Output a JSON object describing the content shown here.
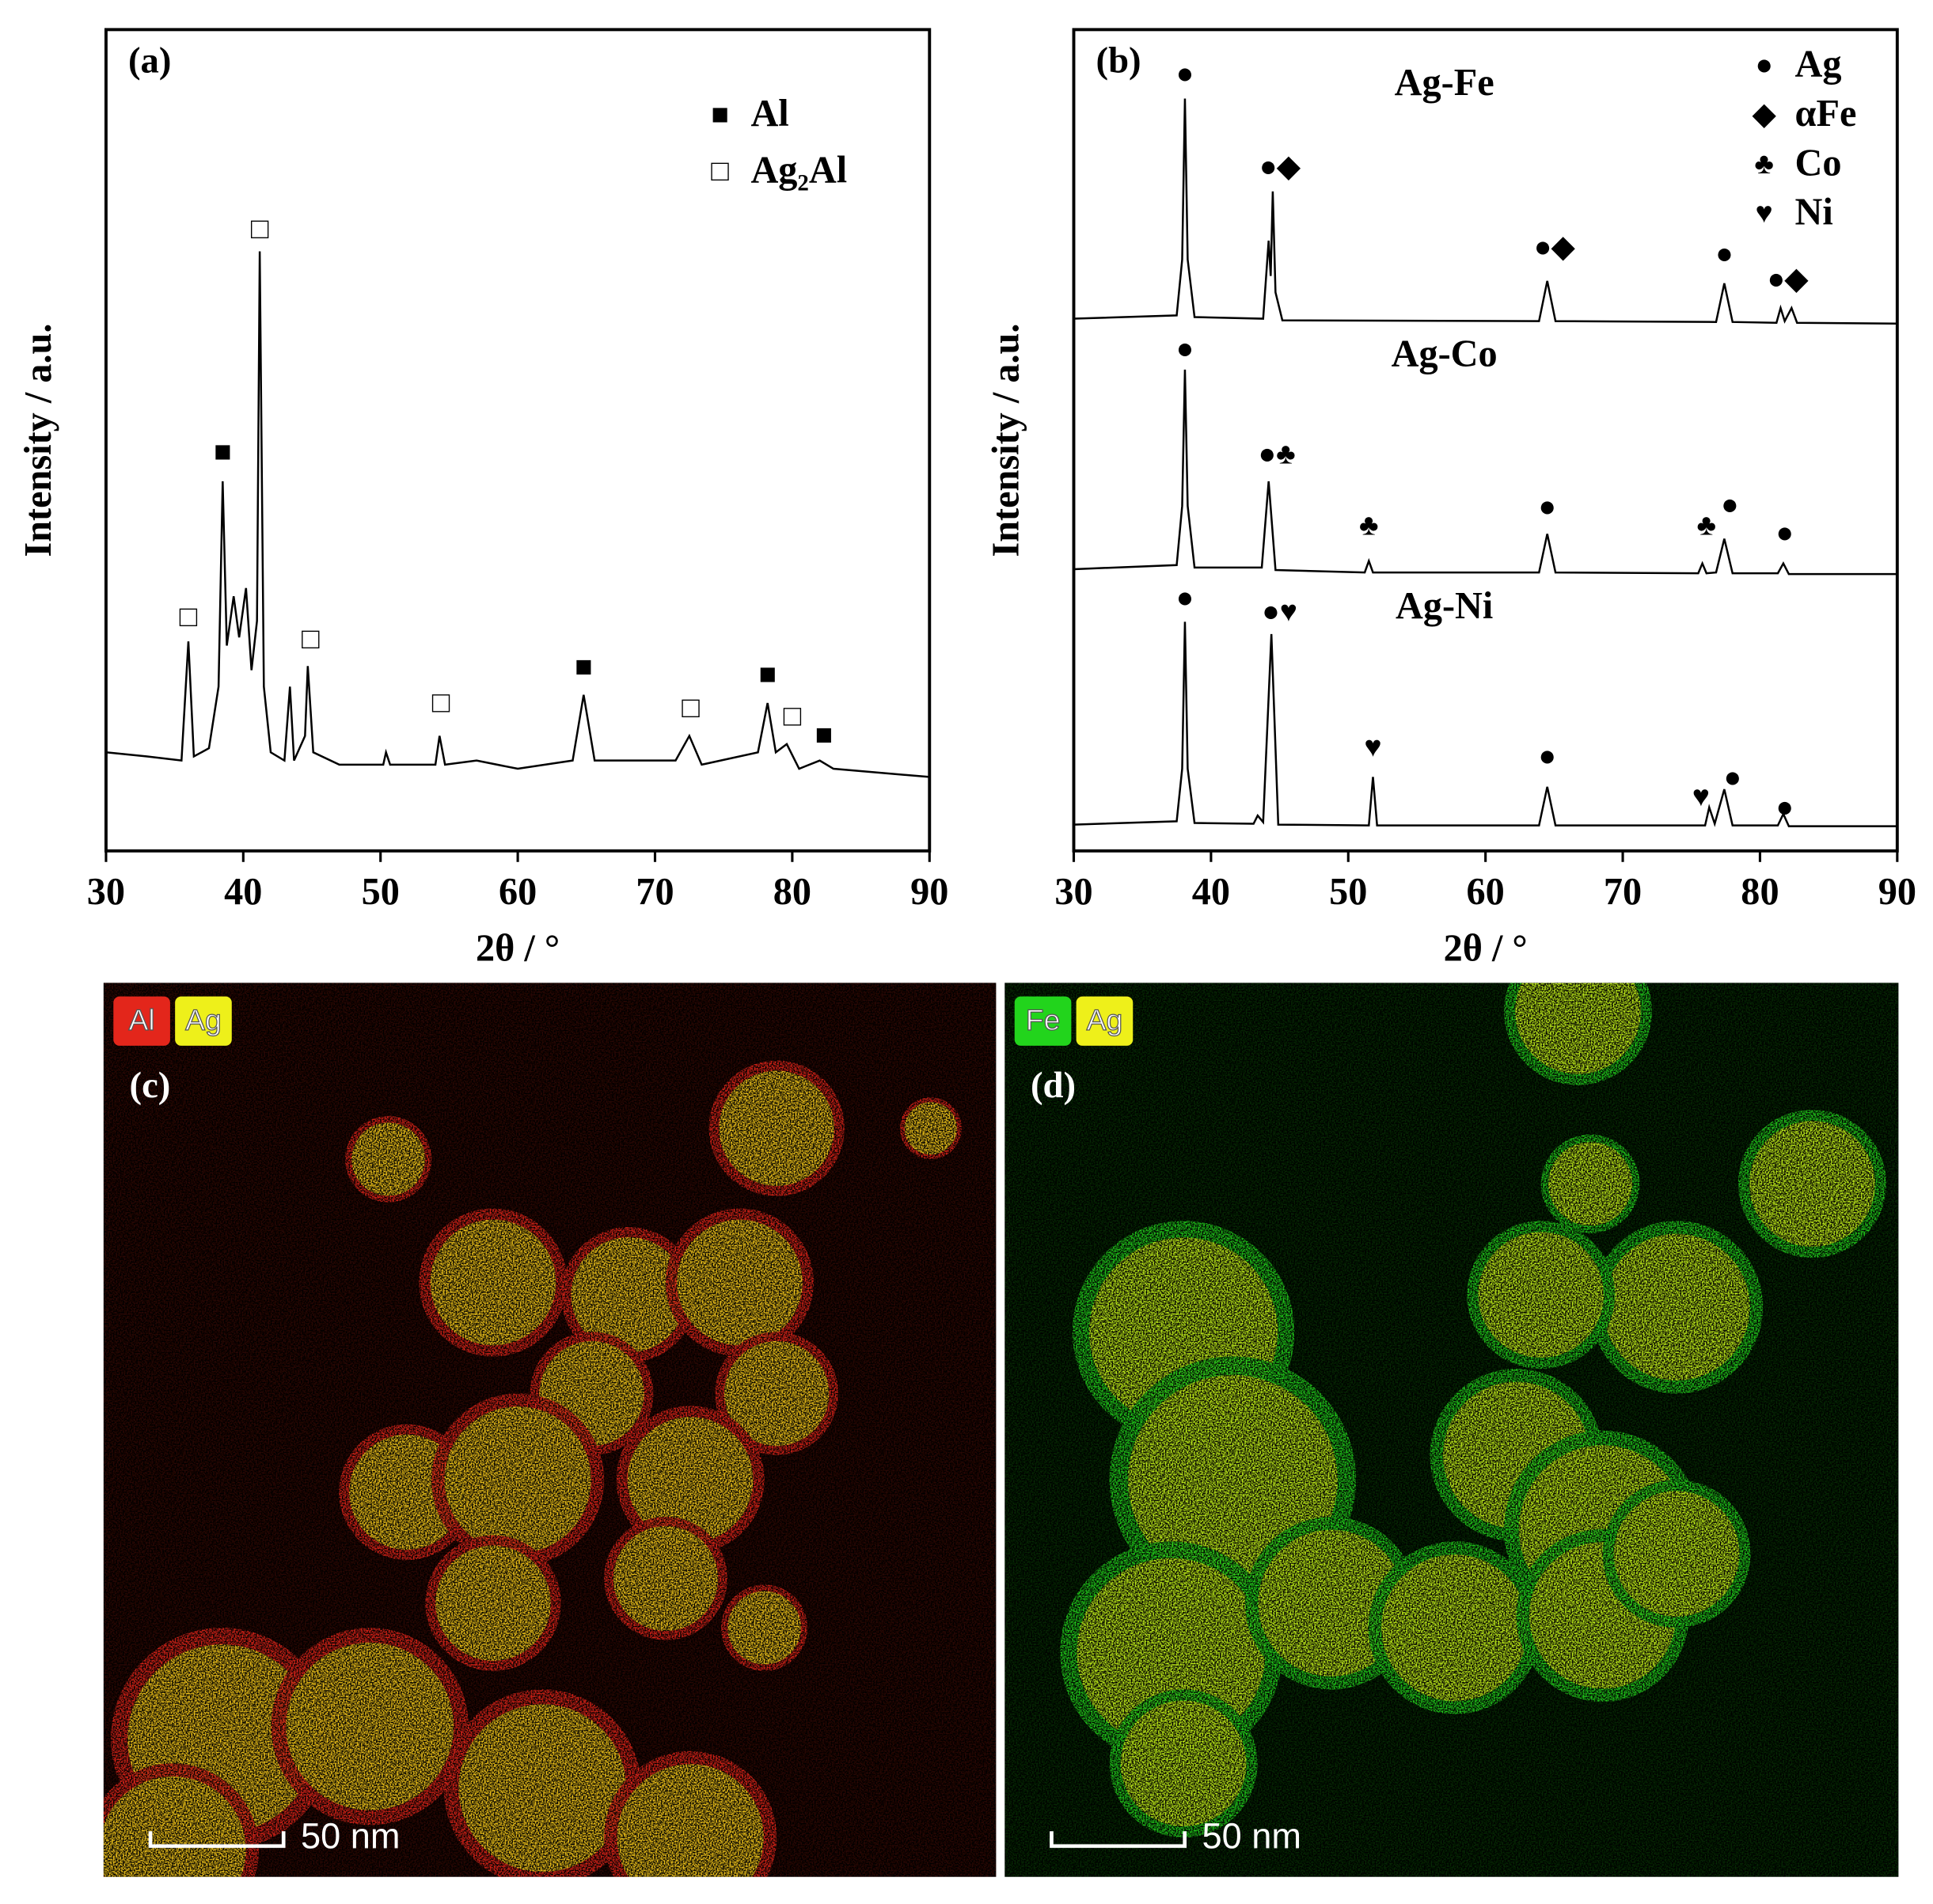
{
  "chart_data": [
    {
      "type": "line",
      "title": "(a)",
      "x_label": "2θ / °",
      "y_label": "Intensity / a.u.",
      "xlim": [
        30,
        90
      ],
      "xticks": [
        30,
        40,
        50,
        60,
        70,
        80,
        90
      ],
      "ylim": [
        0,
        100
      ],
      "color": "#000000",
      "x": [
        30,
        33,
        35.5,
        36,
        36.4,
        37.5,
        38.2,
        38.5,
        38.8,
        39.3,
        39.7,
        40.2,
        40.6,
        41.0,
        41.2,
        41.5,
        42,
        43,
        43.4,
        43.7,
        44.5,
        44.7,
        45.1,
        47,
        50.2,
        50.4,
        50.7,
        54,
        54.3,
        54.7,
        57,
        60,
        64,
        64.8,
        65.6,
        71.5,
        72.5,
        73.4,
        77.5,
        78.2,
        78.8,
        79.6,
        80.5,
        82,
        83,
        90
      ],
      "values": [
        12,
        11.5,
        11,
        25.5,
        11.5,
        12.5,
        20,
        45,
        25,
        31,
        26,
        32,
        22,
        28,
        73,
        20,
        12,
        11,
        20,
        11,
        14,
        22.5,
        12,
        10.5,
        10.5,
        12,
        10.5,
        10.5,
        14,
        10.5,
        11,
        10,
        11,
        19,
        11,
        11,
        14,
        10.5,
        12,
        18,
        12,
        13,
        10,
        11,
        10,
        9
      ],
      "markers": [
        {
          "x": 36,
          "y": 28.2,
          "symbol": "□"
        },
        {
          "x": 38.5,
          "y": 48.3,
          "symbol": "■"
        },
        {
          "x": 41.2,
          "y": 75.4,
          "symbol": "□"
        },
        {
          "x": 44.9,
          "y": 25.5,
          "symbol": "□"
        },
        {
          "x": 54.4,
          "y": 17.7,
          "symbol": "□"
        },
        {
          "x": 64.8,
          "y": 22.1,
          "symbol": "■"
        },
        {
          "x": 72.6,
          "y": 17.1,
          "symbol": "□"
        },
        {
          "x": 78.2,
          "y": 21.2,
          "symbol": "■"
        },
        {
          "x": 80,
          "y": 16.1,
          "symbol": "□"
        },
        {
          "x": 82.3,
          "y": 13.8,
          "symbol": "■"
        }
      ],
      "legend": [
        {
          "symbol": "■",
          "label": "Al"
        },
        {
          "symbol": "□",
          "label": "Ag₂Al"
        }
      ],
      "legend_position": "upper right"
    },
    {
      "type": "line",
      "title": "(b)",
      "x_label": "2θ / °",
      "y_label": "Intensity / a.u.",
      "xlim": [
        30,
        90
      ],
      "xticks": [
        30,
        40,
        50,
        60,
        70,
        80,
        90
      ],
      "ylim": [
        0,
        100
      ],
      "series": [
        {
          "name": "Ag-Fe",
          "color": "#000000",
          "x": [
            30,
            37.5,
            37.9,
            38.1,
            38.3,
            38.8,
            43.8,
            44.2,
            44.35,
            44.5,
            44.7,
            45.2,
            63.9,
            64.5,
            65.1,
            76.8,
            77.4,
            78,
            81.2,
            81.5,
            81.8,
            82.3,
            82.7,
            90
          ],
          "values": [
            64.8,
            65.2,
            72,
            91.6,
            72,
            65,
            64.8,
            74.3,
            70,
            80.3,
            68,
            64.6,
            64.5,
            69.4,
            64.5,
            64.4,
            69.1,
            64.4,
            64.3,
            66.1,
            64.5,
            66.1,
            64.3,
            64.2
          ],
          "markers": [
            {
              "x": 38.1,
              "y": 94.3,
              "symbol": "●"
            },
            {
              "x": 45.0,
              "y": 83.0,
              "symbol": "●◆"
            },
            {
              "x": 65.0,
              "y": 73.2,
              "symbol": "●◆"
            },
            {
              "x": 77.4,
              "y": 72.4,
              "symbol": "●"
            },
            {
              "x": 82.0,
              "y": 69.3,
              "symbol": "●◆"
            }
          ]
        },
        {
          "name": "Ag-Co",
          "color": "#000000",
          "x": [
            30,
            37.5,
            37.9,
            38.1,
            38.3,
            38.8,
            43.7,
            44.2,
            44.7,
            51.2,
            51.5,
            51.8,
            63.9,
            64.5,
            65.1,
            75.5,
            75.8,
            76.1,
            76.8,
            77.4,
            78,
            81.3,
            81.7,
            82.1,
            90
          ],
          "values": [
            34.3,
            34.8,
            42,
            58.6,
            42,
            34.5,
            34.5,
            45,
            34.2,
            33.9,
            35.3,
            33.9,
            33.9,
            38.6,
            33.9,
            33.8,
            35,
            33.8,
            33.9,
            38,
            33.8,
            33.8,
            35,
            33.7,
            33.7
          ],
          "markers": [
            {
              "x": 38.1,
              "y": 60.8,
              "symbol": "●"
            },
            {
              "x": 44.8,
              "y": 48.0,
              "symbol": "●♣"
            },
            {
              "x": 51.5,
              "y": 39.3,
              "symbol": "♣"
            },
            {
              "x": 64.5,
              "y": 41.6,
              "symbol": "●"
            },
            {
              "x": 76.1,
              "y": 39.3,
              "symbol": "♣"
            },
            {
              "x": 77.8,
              "y": 41.8,
              "symbol": "●"
            },
            {
              "x": 81.8,
              "y": 38.4,
              "symbol": "●"
            }
          ]
        },
        {
          "name": "Ag-Ni",
          "color": "#000000",
          "x": [
            30,
            37.5,
            37.9,
            38.1,
            38.3,
            38.8,
            43.1,
            43.4,
            43.8,
            44.4,
            44.9,
            51.5,
            51.8,
            52.1,
            63.9,
            64.5,
            65.1,
            76,
            76.3,
            76.7,
            77.4,
            78,
            81.3,
            81.7,
            82.1,
            90
          ],
          "values": [
            3.2,
            3.6,
            10,
            27.9,
            10,
            3.4,
            3.3,
            4.3,
            3.5,
            26.4,
            3.2,
            3.1,
            9,
            3.1,
            3.1,
            7.8,
            3.1,
            3.1,
            5.3,
            3.3,
            7.5,
            3.1,
            3.1,
            4.5,
            3.0,
            3.0
          ],
          "markers": [
            {
              "x": 38.1,
              "y": 30.5,
              "symbol": "●"
            },
            {
              "x": 45.0,
              "y": 28.8,
              "symbol": "●♥"
            },
            {
              "x": 51.8,
              "y": 12.3,
              "symbol": "♥"
            },
            {
              "x": 64.5,
              "y": 11.2,
              "symbol": "●"
            },
            {
              "x": 75.7,
              "y": 6.3,
              "symbol": "♥"
            },
            {
              "x": 78.0,
              "y": 8.6,
              "symbol": "●"
            },
            {
              "x": 81.8,
              "y": 5.0,
              "symbol": "●"
            }
          ]
        }
      ],
      "legend": [
        {
          "symbol": "●",
          "label": "Ag"
        },
        {
          "symbol": "◆",
          "label": "αFe"
        },
        {
          "symbol": "♣",
          "label": "Co"
        },
        {
          "symbol": "♥",
          "label": "Ni"
        }
      ],
      "legend_position": "upper right"
    }
  ],
  "images": [
    {
      "label": "(c)",
      "elements": [
        {
          "name": "Al",
          "color": "#e3261b"
        },
        {
          "name": "Ag",
          "color": "#eef01a"
        }
      ],
      "scale_bar": "50 nm"
    },
    {
      "label": "(d)",
      "elements": [
        {
          "name": "Fe",
          "color": "#22d41c"
        },
        {
          "name": "Ag",
          "color": "#eef01a"
        }
      ],
      "scale_bar": "50 nm"
    }
  ]
}
